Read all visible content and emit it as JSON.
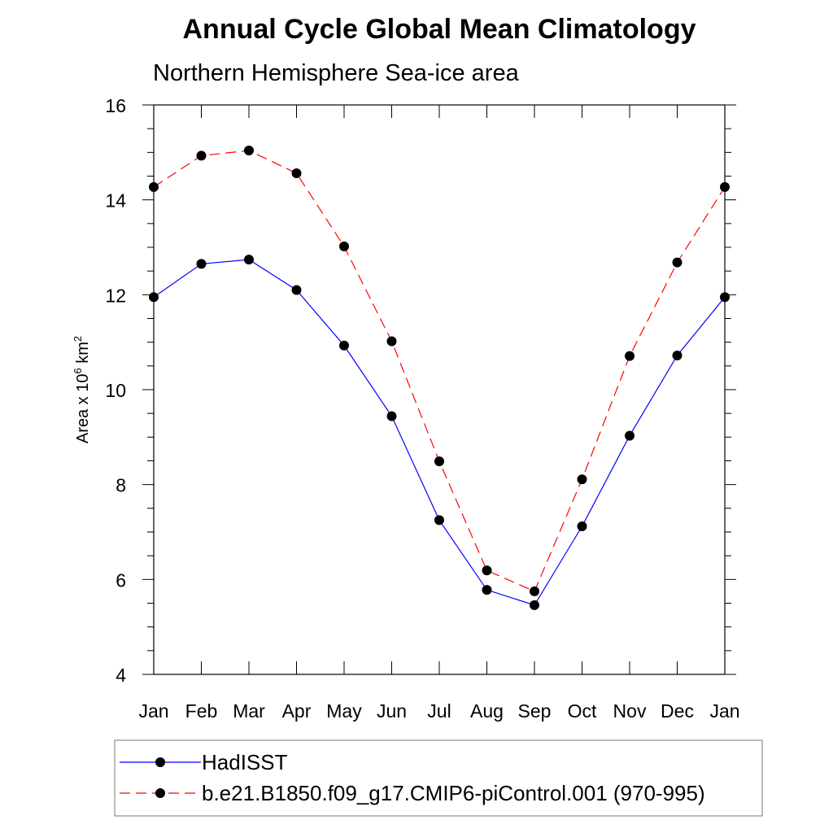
{
  "chart_data": {
    "type": "line",
    "title": "Annual Cycle Global Mean Climatology",
    "subtitle": "Northern Hemisphere Sea-ice area",
    "ylabel_main": "Area x 10",
    "ylabel_sup_exp": "6",
    "ylabel_unit": " km",
    "ylabel_sup_unit": "2",
    "xlabel": "",
    "categories": [
      "Jan",
      "Feb",
      "Mar",
      "Apr",
      "May",
      "Jun",
      "Jul",
      "Aug",
      "Sep",
      "Oct",
      "Nov",
      "Dec",
      "Jan"
    ],
    "ylim": [
      4,
      16
    ],
    "yticks": [
      4,
      6,
      8,
      10,
      12,
      14,
      16
    ],
    "grid": false,
    "legend_position": "bottom",
    "series": [
      {
        "name": "HadISST",
        "color": "#0000ff",
        "style": "solid",
        "marker": "circle",
        "values": [
          11.95,
          12.65,
          12.74,
          12.1,
          10.93,
          9.44,
          7.25,
          5.78,
          5.46,
          7.12,
          9.03,
          10.72,
          11.95
        ]
      },
      {
        "name": "b.e21.B1850.f09_g17.CMIP6-piControl.001 (970-995)",
        "color": "#ff0000",
        "style": "dashed",
        "marker": "circle",
        "values": [
          14.27,
          14.93,
          15.04,
          14.56,
          13.02,
          11.02,
          8.49,
          6.19,
          5.75,
          8.11,
          10.71,
          12.68,
          14.27
        ]
      }
    ]
  }
}
